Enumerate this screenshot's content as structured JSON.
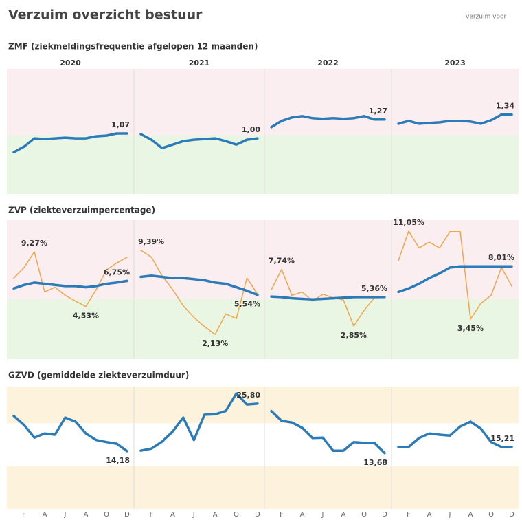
{
  "header": {
    "title": "Verzuim overzicht bestuur",
    "note": "verzuim voor"
  },
  "years": [
    "2020",
    "2021",
    "2022",
    "2023"
  ],
  "categories": [
    null,
    "F",
    null,
    "A",
    null,
    "J",
    null,
    "A",
    null,
    "O",
    null,
    "D"
  ],
  "chart_data": [
    {
      "type": "line",
      "title": "ZMF (ziekmeldingsfrequentie afgelopen 12 maanden)",
      "ylim": [
        0.2,
        2.0
      ],
      "zones": [
        {
          "from": 1.05,
          "to": 2.0,
          "color": "#fbeef0"
        },
        {
          "from": 0.2,
          "to": 1.05,
          "color": "#eaf6e4"
        }
      ],
      "panels": [
        {
          "series": [
            {
              "color": "#2b7bb9",
              "label_color": "#333333",
              "values": [
                0.8,
                0.88,
                1.0,
                0.99,
                1.0,
                1.01,
                1.0,
                1.0,
                1.03,
                1.04,
                1.07,
                1.07
              ],
              "value_labels": [
                null,
                null,
                null,
                null,
                null,
                null,
                null,
                null,
                null,
                null,
                null,
                "1,07"
              ]
            }
          ]
        },
        {
          "series": [
            {
              "color": "#2b7bb9",
              "label_color": "#333333",
              "values": [
                1.06,
                0.98,
                0.86,
                0.91,
                0.96,
                0.98,
                0.99,
                1.0,
                0.96,
                0.91,
                0.98,
                1.0
              ],
              "value_labels": [
                null,
                null,
                null,
                null,
                null,
                null,
                null,
                null,
                null,
                null,
                null,
                "1,00"
              ]
            }
          ]
        },
        {
          "series": [
            {
              "color": "#2b7bb9",
              "label_color": "#333333",
              "values": [
                1.16,
                1.25,
                1.3,
                1.32,
                1.29,
                1.28,
                1.29,
                1.28,
                1.29,
                1.32,
                1.27,
                1.27
              ],
              "value_labels": [
                null,
                null,
                null,
                null,
                null,
                null,
                null,
                null,
                null,
                null,
                null,
                "1,27"
              ]
            }
          ]
        },
        {
          "series": [
            {
              "color": "#2b7bb9",
              "label_color": "#333333",
              "values": [
                1.21,
                1.25,
                1.21,
                1.22,
                1.23,
                1.25,
                1.25,
                1.24,
                1.21,
                1.26,
                1.34,
                1.34
              ],
              "value_labels": [
                null,
                null,
                null,
                null,
                null,
                null,
                null,
                null,
                null,
                null,
                null,
                "1,34"
              ]
            }
          ]
        }
      ]
    },
    {
      "type": "line",
      "title": "ZVP (ziekteverzuimpercentage)",
      "ylim": [
        0,
        12
      ],
      "zones": [
        {
          "from": 5.2,
          "to": 12,
          "color": "#fbeef0"
        },
        {
          "from": 0,
          "to": 5.2,
          "color": "#eaf6e4"
        }
      ],
      "panels": [
        {
          "series": [
            {
              "color": "#f2a54a",
              "label_color": "#e8963a",
              "thin": true,
              "values": [
                7.0,
                7.9,
                9.27,
                5.8,
                6.2,
                5.5,
                5.0,
                4.53,
                6.0,
                7.7,
                8.3,
                8.8
              ],
              "value_labels": [
                null,
                null,
                "9,27%",
                null,
                null,
                null,
                null,
                "4,53%",
                null,
                null,
                null,
                null
              ]
            },
            {
              "color": "#2b7bb9",
              "label_color": "#2a8a9a",
              "values": [
                6.1,
                6.4,
                6.6,
                6.5,
                6.4,
                6.3,
                6.3,
                6.2,
                6.3,
                6.5,
                6.6,
                6.75
              ],
              "value_labels": [
                null,
                null,
                null,
                null,
                null,
                null,
                null,
                null,
                null,
                null,
                null,
                "6,75%"
              ]
            }
          ]
        },
        {
          "series": [
            {
              "color": "#f2a54a",
              "label_color": "#e8963a",
              "thin": true,
              "values": [
                9.39,
                8.8,
                7.2,
                6.0,
                4.6,
                3.6,
                2.8,
                2.13,
                3.9,
                3.5,
                7.0,
                5.6
              ],
              "value_labels": [
                "9,39%",
                null,
                null,
                null,
                null,
                null,
                null,
                "2,13%",
                null,
                null,
                null,
                null
              ]
            },
            {
              "color": "#2b7bb9",
              "label_color": "#2a8a9a",
              "values": [
                7.1,
                7.2,
                7.1,
                7.0,
                7.0,
                6.9,
                6.8,
                6.6,
                6.5,
                6.2,
                5.9,
                5.54
              ],
              "value_labels": [
                null,
                null,
                null,
                null,
                null,
                null,
                null,
                null,
                null,
                null,
                null,
                "5,54%"
              ]
            }
          ]
        },
        {
          "series": [
            {
              "color": "#f2a54a",
              "label_color": "#e8963a",
              "thin": true,
              "values": [
                6.0,
                7.74,
                5.5,
                5.8,
                5.0,
                5.6,
                5.3,
                5.1,
                2.85,
                4.2,
                5.3,
                5.36
              ],
              "value_labels": [
                null,
                "7,74%",
                null,
                null,
                null,
                null,
                null,
                null,
                "2,85%",
                null,
                null,
                null
              ]
            },
            {
              "color": "#2b7bb9",
              "label_color": "#2a8a9a",
              "values": [
                5.4,
                5.35,
                5.25,
                5.2,
                5.15,
                5.2,
                5.25,
                5.3,
                5.35,
                5.35,
                5.35,
                5.36
              ],
              "value_labels": [
                null,
                null,
                null,
                null,
                null,
                null,
                null,
                null,
                null,
                null,
                null,
                "5,36%"
              ]
            }
          ]
        },
        {
          "series": [
            {
              "color": "#f2a54a",
              "label_color": "#e8963a",
              "thin": true,
              "values": [
                8.5,
                11.05,
                9.6,
                10.1,
                9.6,
                11.0,
                11.0,
                3.45,
                4.8,
                5.5,
                7.9,
                6.3
              ],
              "value_labels": [
                null,
                "11,05%",
                null,
                null,
                null,
                null,
                null,
                "3,45%",
                null,
                null,
                null,
                null
              ]
            },
            {
              "color": "#2b7bb9",
              "label_color": "#2a8a9a",
              "values": [
                5.8,
                6.1,
                6.5,
                7.0,
                7.4,
                7.9,
                8.0,
                8.0,
                8.0,
                8.0,
                8.01,
                8.01
              ],
              "value_labels": [
                null,
                null,
                null,
                null,
                null,
                null,
                null,
                null,
                null,
                null,
                null,
                "8,01%"
              ]
            }
          ]
        }
      ]
    },
    {
      "type": "line",
      "title": "GZVD (gemiddelde ziekteverzuimduur)",
      "ylim": [
        0,
        30
      ],
      "zones": [
        {
          "from": 21,
          "to": 30,
          "color": "#fdf3dc"
        },
        {
          "from": 10.5,
          "to": 21,
          "color": "#ffffff"
        },
        {
          "from": 0,
          "to": 10.5,
          "color": "#fdf3dc"
        }
      ],
      "panels": [
        {
          "series": [
            {
              "color": "#2b7bb9",
              "label_color": "#333333",
              "values": [
                22.8,
                20.6,
                17.5,
                18.5,
                18.2,
                22.4,
                21.4,
                18.5,
                16.9,
                16.4,
                16.0,
                14.18
              ],
              "value_labels": [
                null,
                null,
                null,
                null,
                null,
                null,
                null,
                null,
                null,
                null,
                null,
                "14,18"
              ]
            }
          ]
        },
        {
          "series": [
            {
              "color": "#2b7bb9",
              "label_color": "#333333",
              "values": [
                14.3,
                14.8,
                16.5,
                19.0,
                22.4,
                16.9,
                23.1,
                23.2,
                24.0,
                28.3,
                25.6,
                25.8
              ],
              "value_labels": [
                null,
                null,
                null,
                null,
                null,
                null,
                null,
                null,
                null,
                null,
                null,
                "25,80"
              ]
            }
          ]
        },
        {
          "series": [
            {
              "color": "#2b7bb9",
              "label_color": "#333333",
              "values": [
                24.0,
                21.6,
                21.2,
                19.9,
                17.4,
                17.5,
                14.3,
                14.3,
                16.4,
                16.2,
                16.2,
                13.68
              ],
              "value_labels": [
                null,
                null,
                null,
                null,
                null,
                null,
                null,
                null,
                null,
                null,
                null,
                "13,68"
              ]
            }
          ]
        },
        {
          "series": [
            {
              "color": "#2b7bb9",
              "label_color": "#333333",
              "values": [
                15.2,
                15.2,
                17.4,
                18.5,
                18.2,
                18.0,
                20.2,
                21.4,
                19.7,
                16.4,
                15.2,
                15.21
              ],
              "value_labels": [
                null,
                null,
                null,
                null,
                null,
                null,
                null,
                null,
                null,
                null,
                null,
                "15,21"
              ]
            }
          ]
        }
      ]
    }
  ]
}
